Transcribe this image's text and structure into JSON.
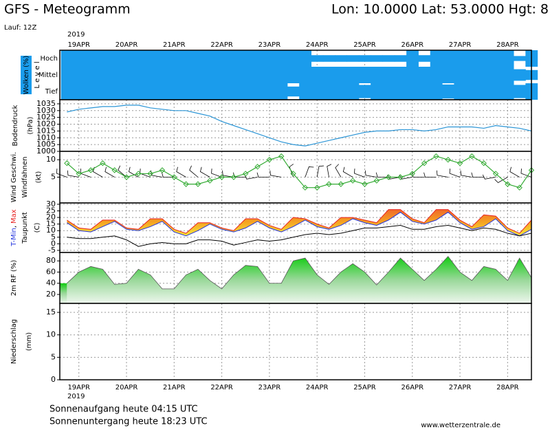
{
  "header": {
    "title": "GFS - Meteogramm",
    "location": "Lon: 10.0000  Lat: 53.0000  Hgt: 8",
    "run": "Lauf: 12Z",
    "year": "2019"
  },
  "footer": {
    "sunrise": "Sonnenaufgang heute 04:15 UTC",
    "sunset": "Sonnenuntergang heute 18:23 UTC",
    "source": "www.wetterzentrale.de"
  },
  "chart_data": [
    {
      "type": "cloud",
      "ylabel": "Wolken (%)",
      "ylabel2": "L e v e l",
      "x": [
        18.75,
        19,
        19.25,
        19.5,
        19.75,
        20,
        20.25,
        20.5,
        20.75,
        21,
        21.25,
        21.5,
        21.75,
        22,
        22.25,
        22.5,
        22.75,
        23,
        23.25,
        23.5,
        23.75,
        24,
        24.25,
        24.5,
        24.75,
        25,
        25.25,
        25.5,
        25.75,
        26,
        26.25,
        26.5,
        26.75,
        27,
        27.25,
        27.5,
        27.75,
        28,
        28.25,
        28.5
      ],
      "xlim": [
        18.6,
        28.5
      ],
      "xticks": [
        {
          "value": 19,
          "label": "19APR"
        },
        {
          "value": 20,
          "label": "20APR"
        },
        {
          "value": 21,
          "label": "21APR"
        },
        {
          "value": 22,
          "label": "22APR"
        },
        {
          "value": 23,
          "label": "23APR"
        },
        {
          "value": 24,
          "label": "24APR"
        },
        {
          "value": 25,
          "label": "25APR"
        },
        {
          "value": 26,
          "label": "26APR"
        },
        {
          "value": 27,
          "label": "27APR"
        },
        {
          "value": 28,
          "label": "28APR"
        }
      ],
      "series": [
        {
          "name": "Hoch",
          "color": "#1a9cec",
          "values": [
            100,
            100,
            100,
            100,
            100,
            100,
            100,
            100,
            100,
            100,
            100,
            100,
            100,
            100,
            100,
            100,
            100,
            100,
            100,
            100,
            100,
            40,
            40,
            40,
            40,
            40,
            40,
            40,
            40,
            100,
            40,
            100,
            100,
            100,
            100,
            100,
            100,
            100,
            30,
            100
          ]
        },
        {
          "name": "Mittel",
          "color": "#1a9cec",
          "values": [
            100,
            100,
            100,
            100,
            100,
            100,
            100,
            100,
            100,
            100,
            100,
            100,
            100,
            100,
            100,
            100,
            100,
            100,
            100,
            100,
            100,
            100,
            100,
            100,
            100,
            100,
            100,
            100,
            100,
            100,
            100,
            100,
            100,
            100,
            100,
            100,
            100,
            100,
            70,
            60
          ]
        },
        {
          "name": "Tief",
          "color": "#1a9cec",
          "values": [
            100,
            100,
            100,
            100,
            100,
            100,
            100,
            100,
            100,
            100,
            100,
            100,
            100,
            100,
            100,
            100,
            100,
            100,
            100,
            60,
            100,
            100,
            100,
            100,
            100,
            80,
            100,
            100,
            100,
            100,
            100,
            100,
            85,
            100,
            100,
            100,
            100,
            100,
            80,
            100
          ]
        }
      ]
    },
    {
      "type": "line",
      "ylabel": "Bodendruck",
      "yunit": "(hPa)",
      "color": "#2b95d6",
      "ylim": [
        1000,
        1038
      ],
      "yticks": [
        1000,
        1005,
        1010,
        1015,
        1020,
        1025,
        1030,
        1035
      ],
      "values": [
        1029,
        1031,
        1032,
        1033,
        1033,
        1034,
        1034,
        1032,
        1031,
        1030,
        1030,
        1028,
        1026,
        1022,
        1019,
        1016,
        1013,
        1010,
        1007,
        1005,
        1004,
        1006,
        1008,
        1010,
        1012,
        1014,
        1015,
        1015,
        1016,
        1016,
        1015,
        1016,
        1018,
        1018,
        1018,
        1017,
        1019,
        1018,
        1017,
        1015
      ]
    },
    {
      "type": "wind",
      "yunit": "(kt)",
      "ylim": [
        -2.4,
        12.4
      ],
      "yticks": [
        5,
        10
      ],
      "series": [
        {
          "name": "Wind Geschwi.",
          "color": "#33aa33",
          "values": [
            9,
            6,
            7,
            9,
            7,
            5,
            6,
            6,
            7,
            5,
            3,
            3,
            4,
            5,
            5,
            6,
            8,
            10,
            11,
            6,
            2,
            2,
            3,
            3,
            4,
            3,
            4,
            5,
            5,
            6,
            9,
            11,
            10,
            9,
            11,
            9,
            6,
            3,
            2,
            7
          ]
        }
      ],
      "barbs": {
        "name": "Windfahnen",
        "directions": [
          290,
          280,
          290,
          300,
          300,
          310,
          300,
          290,
          280,
          270,
          300,
          310,
          300,
          290,
          280,
          270,
          260,
          270,
          280,
          340,
          20,
          10,
          350,
          330,
          300,
          290,
          280,
          270,
          260,
          260,
          270,
          270,
          280,
          290,
          280,
          270,
          260,
          240,
          300,
          290
        ]
      }
    },
    {
      "type": "temperature",
      "yunit": "(C)",
      "separator": ",",
      "ylim": [
        -6.6,
        31
      ],
      "yticks": [
        -5,
        0,
        5,
        10,
        15,
        20,
        25,
        30
      ],
      "series": [
        {
          "name": "T-Min",
          "color": "#2233dd",
          "values": [
            16,
            10,
            9,
            13,
            17,
            11,
            10,
            13,
            17,
            9,
            6,
            10,
            15,
            11,
            9,
            12,
            17,
            12,
            9,
            13,
            18,
            13,
            11,
            14,
            19,
            16,
            14,
            18,
            24,
            17,
            15,
            18,
            24,
            16,
            11,
            13,
            19,
            10,
            6,
            11
          ]
        },
        {
          "name": "Max",
          "color": "#e82020",
          "values": [
            18,
            12,
            11,
            18,
            18,
            12,
            11,
            19,
            19,
            11,
            8,
            16,
            16,
            12,
            10,
            19,
            19,
            14,
            11,
            20,
            19,
            15,
            12,
            20,
            20,
            18,
            16,
            26,
            26,
            19,
            16,
            26,
            26,
            18,
            13,
            22,
            21,
            12,
            8,
            18
          ]
        },
        {
          "name": "Taupunkt",
          "color": "#000000",
          "values": [
            5,
            4,
            4,
            5,
            6,
            3,
            -2,
            0,
            1,
            0,
            0,
            3,
            3,
            2,
            -1,
            1,
            3,
            2,
            3,
            5,
            7,
            8,
            7,
            8,
            10,
            12,
            12,
            13,
            14,
            11,
            11,
            13,
            14,
            12,
            10,
            12,
            11,
            8,
            6,
            8
          ]
        }
      ]
    },
    {
      "type": "area",
      "ylabel": "2m RF (%)",
      "color": "#22bb22",
      "ylim": [
        4,
        95
      ],
      "yticks": [
        20,
        40,
        60,
        80
      ],
      "values": [
        40,
        60,
        70,
        65,
        38,
        40,
        65,
        55,
        30,
        30,
        55,
        65,
        45,
        30,
        55,
        72,
        70,
        40,
        40,
        80,
        85,
        55,
        38,
        60,
        75,
        60,
        37,
        60,
        85,
        65,
        45,
        65,
        88,
        60,
        45,
        70,
        65,
        45,
        85,
        50
      ]
    },
    {
      "type": "bar",
      "ylabel": "Niederschlag",
      "yunit": "(mm)",
      "color": "#e06020",
      "ylim": [
        0,
        17
      ],
      "yticks": [
        0,
        5,
        10,
        15
      ],
      "values": [
        0,
        0,
        0,
        0,
        0,
        0,
        0,
        0,
        0,
        0,
        0,
        0,
        0,
        0,
        0,
        0,
        0,
        0,
        0,
        0,
        0,
        0,
        0,
        0,
        0,
        0,
        0,
        0,
        0,
        0,
        0,
        0,
        0,
        0,
        0,
        0,
        0,
        0,
        0,
        0
      ]
    }
  ]
}
